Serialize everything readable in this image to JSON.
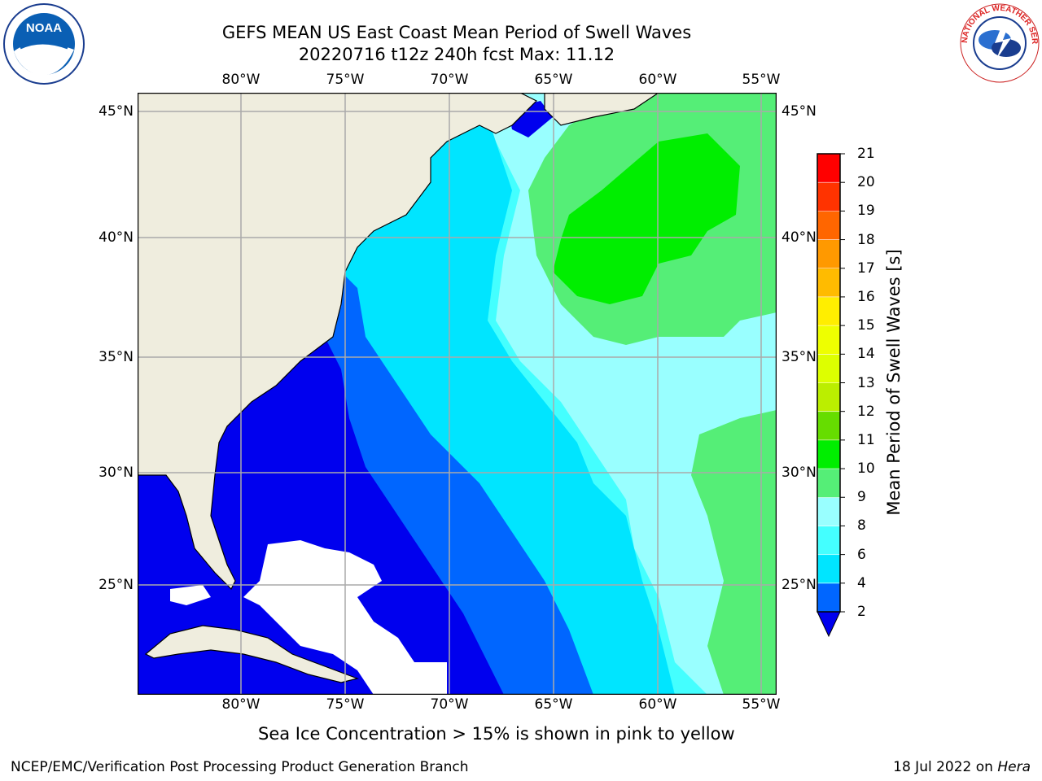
{
  "title_line1": "GEFS MEAN US East Coast Mean Period of Swell Waves",
  "title_line2": "20220716 t12z 240h fcst   Max: 11.12",
  "logos": {
    "left": {
      "icon": "noaa-logo",
      "text": "NOAA"
    },
    "right": {
      "icon": "nws-logo",
      "text": "NATIONAL WEATHER SERVICE"
    }
  },
  "map": {
    "longitude_labels": [
      "80°W",
      "75°W",
      "70°W",
      "65°W",
      "60°W",
      "55°W"
    ],
    "latitude_labels": [
      "45°N",
      "40°N",
      "35°N",
      "30°N",
      "25°N"
    ],
    "region": "US East Coast / Western North Atlantic",
    "colors": {
      "land": "#efedde",
      "no_data": "#ffffff",
      "grid": "#aaaaaa",
      "coastline": "#000000"
    }
  },
  "colorbar": {
    "title": "Mean Period of Swell Waves [s]",
    "tick_labels": [
      "2",
      "4",
      "6",
      "8",
      "9",
      "10",
      "11",
      "12",
      "13",
      "14",
      "15",
      "16",
      "17",
      "18",
      "19",
      "20",
      "21"
    ],
    "underflow_color": "#0000ee",
    "bins": [
      {
        "from": 2,
        "to": 4,
        "color": "#0066ff"
      },
      {
        "from": 4,
        "to": 6,
        "color": "#00e5ff"
      },
      {
        "from": 6,
        "to": 8,
        "color": "#44ffff"
      },
      {
        "from": 8,
        "to": 9,
        "color": "#99ffff"
      },
      {
        "from": 9,
        "to": 10,
        "color": "#55ee77"
      },
      {
        "from": 10,
        "to": 11,
        "color": "#00ee00"
      },
      {
        "from": 11,
        "to": 12,
        "color": "#66dd00"
      },
      {
        "from": 12,
        "to": 13,
        "color": "#bbee00"
      },
      {
        "from": 13,
        "to": 14,
        "color": "#ddff00"
      },
      {
        "from": 14,
        "to": 15,
        "color": "#eeff00"
      },
      {
        "from": 15,
        "to": 16,
        "color": "#ffee00"
      },
      {
        "from": 16,
        "to": 17,
        "color": "#ffbb00"
      },
      {
        "from": 17,
        "to": 18,
        "color": "#ff9900"
      },
      {
        "from": 18,
        "to": 19,
        "color": "#ff6600"
      },
      {
        "from": 19,
        "to": 20,
        "color": "#ff3300"
      },
      {
        "from": 20,
        "to": 21,
        "color": "#ff0000"
      }
    ]
  },
  "footer_note": "Sea Ice Concentration > 15% is shown in pink to yellow",
  "credit": "NCEP/EMC/Verification Post Processing Product Generation Branch",
  "date_text": "18 Jul 2022 on ",
  "host": "Hera"
}
